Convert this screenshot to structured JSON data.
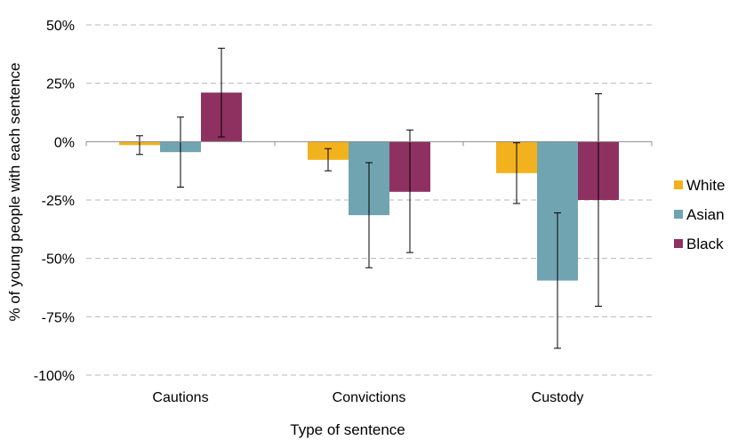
{
  "chart_data": {
    "type": "bar",
    "title": "",
    "xlabel": "Type of sentence",
    "ylabel": "% of young people with each sentence",
    "ylim": [
      -100,
      50
    ],
    "yticks": [
      50,
      25,
      0,
      -25,
      -50,
      -75,
      -100
    ],
    "ytick_labels": [
      "50%",
      "25%",
      "0%",
      "-25%",
      "-50%",
      "-75%",
      "-100%"
    ],
    "grid": true,
    "legend_position": "right",
    "categories": [
      "Cautions",
      "Convictions",
      "Custody"
    ],
    "series": [
      {
        "name": "White",
        "color": "#f2b21e",
        "values": [
          -1.5,
          -7.8,
          -13.5
        ],
        "error_low": [
          -5.5,
          -12.5,
          -26.5
        ],
        "error_high": [
          2.5,
          -3.0,
          -0.5
        ]
      },
      {
        "name": "Asian",
        "color": "#71a4b1",
        "values": [
          -4.5,
          -31.5,
          -59.5
        ],
        "error_low": [
          -19.5,
          -54.0,
          -88.5
        ],
        "error_high": [
          10.5,
          -9.0,
          -30.5
        ]
      },
      {
        "name": "Black",
        "color": "#8e3160",
        "values": [
          21.0,
          -21.5,
          -25.0
        ],
        "error_low": [
          2.0,
          -47.5,
          -70.5
        ],
        "error_high": [
          40.0,
          5.0,
          20.5
        ]
      }
    ]
  }
}
